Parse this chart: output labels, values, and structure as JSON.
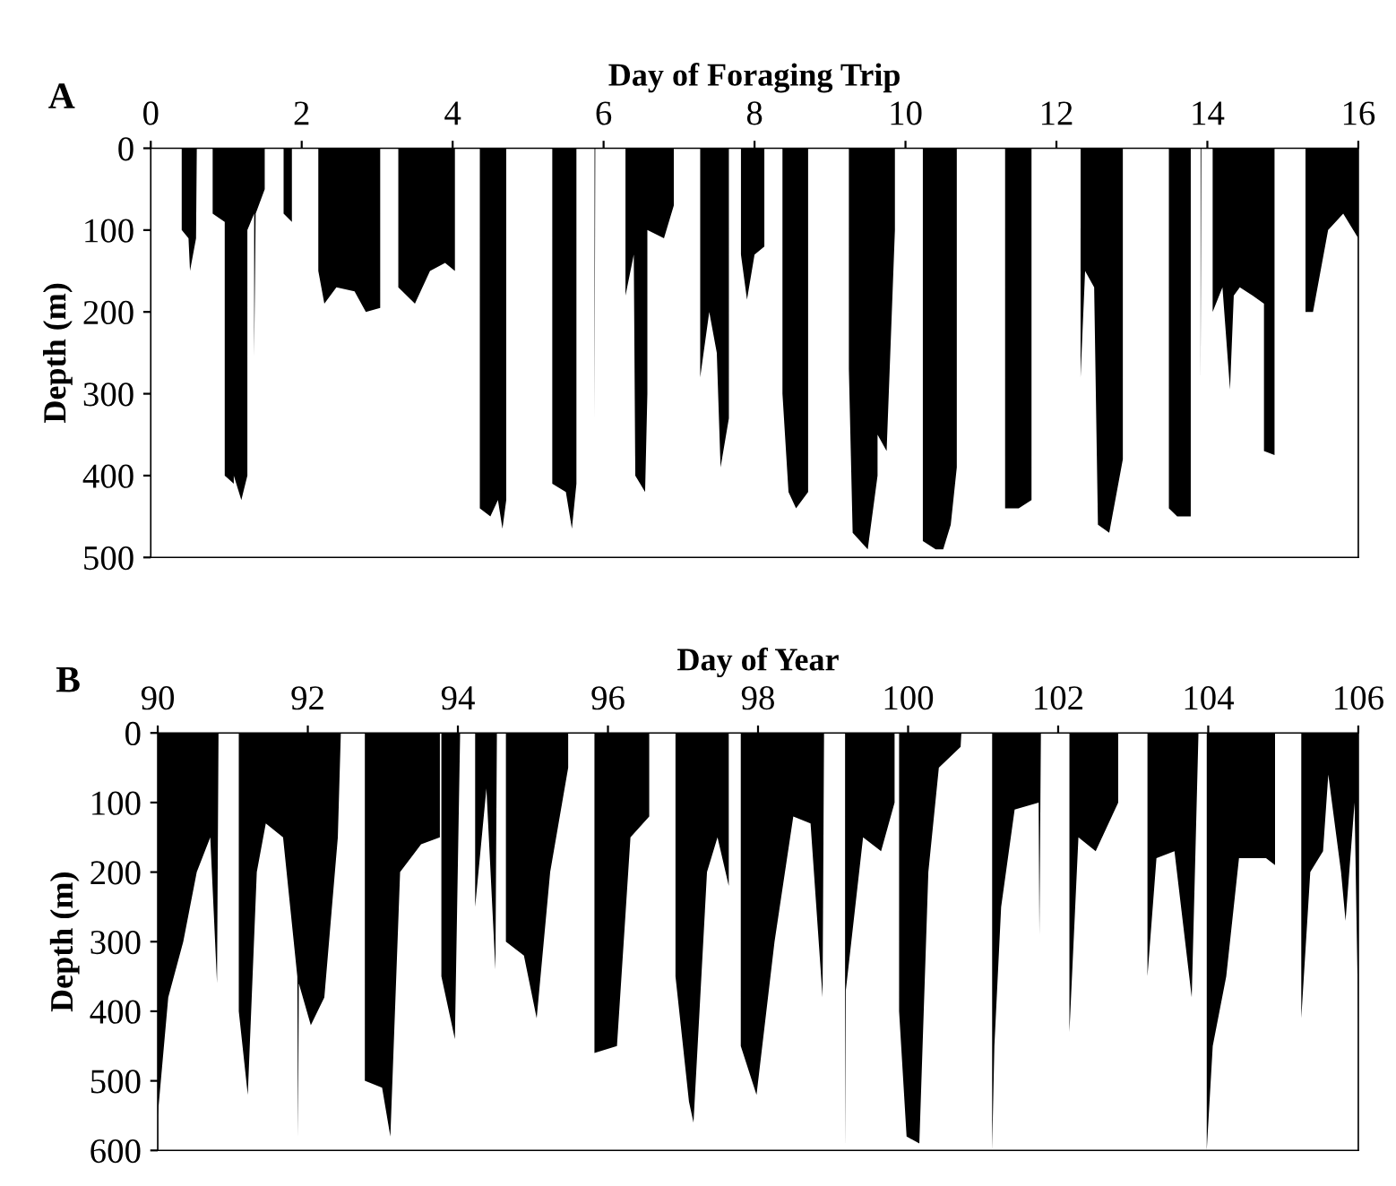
{
  "chart_data": [
    {
      "type": "area",
      "xlabel": "Day of Foraging Trip",
      "ylabel": "Depth (m)",
      "annotations": [
        "A"
      ],
      "xlim": [
        0,
        16
      ],
      "xticks": [
        0,
        2,
        4,
        6,
        8,
        10,
        12,
        14,
        16
      ],
      "ylim": [
        500,
        0
      ],
      "yticks": [
        0,
        100,
        200,
        300,
        400,
        500
      ],
      "series": [
        {
          "color": "#000000",
          "x": [
            0,
            0.41,
            0.41,
            0.5,
            0.52,
            0.6,
            0.61,
            0.82,
            0.82,
            0.98,
            0.98,
            1.1,
            1.1,
            1.2,
            1.28,
            1.28,
            1.37,
            1.37,
            1.39,
            1.51,
            1.51,
            1.76,
            1.76,
            1.87,
            1.87,
            2.22,
            2.22,
            2.3,
            2.46,
            2.7,
            2.85,
            3.04,
            3.04,
            3.28,
            3.28,
            3.5,
            3.7,
            3.9,
            4.03,
            4.03,
            4.36,
            4.36,
            4.5,
            4.6,
            4.66,
            4.71,
            4.71,
            5.32,
            5.32,
            5.5,
            5.58,
            5.64,
            5.64,
            5.88,
            5.88,
            5.89,
            6.29,
            6.29,
            6.4,
            6.42,
            6.55,
            6.58,
            6.58,
            6.8,
            6.93,
            6.93,
            7.28,
            7.28,
            7.4,
            7.5,
            7.55,
            7.66,
            7.66,
            7.82,
            7.82,
            7.9,
            8.0,
            8.13,
            8.13,
            8.37,
            8.37,
            8.45,
            8.55,
            8.71,
            8.71,
            9.25,
            9.25,
            9.3,
            9.5,
            9.63,
            9.63,
            9.75,
            9.86,
            9.86,
            10.23,
            10.23,
            10.4,
            10.5,
            10.6,
            10.68,
            10.68,
            11.32,
            11.32,
            11.5,
            11.67,
            11.67,
            12.32,
            12.32,
            12.38,
            12.5,
            12.55,
            12.7,
            12.88,
            12.88,
            13.49,
            13.49,
            13.6,
            13.78,
            13.78,
            13.91,
            13.91,
            13.92,
            14.07,
            14.07,
            14.2,
            14.3,
            14.35,
            14.43,
            14.6,
            14.75,
            14.75,
            14.89,
            14.89,
            15.3,
            15.3,
            15.4,
            15.6,
            15.8,
            16
          ],
          "values": [
            0,
            0,
            100,
            110,
            150,
            110,
            0,
            0,
            80,
            90,
            400,
            410,
            400,
            430,
            400,
            100,
            80,
            255,
            80,
            50,
            0,
            0,
            80,
            90,
            0,
            0,
            150,
            190,
            170,
            175,
            200,
            195,
            0,
            0,
            170,
            190,
            150,
            140,
            150,
            0,
            0,
            440,
            450,
            430,
            465,
            430,
            0,
            0,
            410,
            420,
            465,
            410,
            0,
            0,
            330,
            0,
            0,
            180,
            130,
            400,
            420,
            300,
            100,
            110,
            70,
            0,
            0,
            280,
            200,
            250,
            390,
            330,
            0,
            0,
            130,
            185,
            130,
            120,
            0,
            0,
            300,
            420,
            440,
            420,
            0,
            0,
            270,
            470,
            490,
            400,
            350,
            370,
            100,
            0,
            0,
            480,
            490,
            490,
            460,
            390,
            0,
            0,
            440,
            440,
            430,
            0,
            0,
            280,
            150,
            170,
            460,
            470,
            380,
            0,
            0,
            440,
            450,
            450,
            0,
            0,
            290,
            0,
            0,
            200,
            170,
            295,
            180,
            170,
            180,
            190,
            370,
            375,
            0,
            0,
            200,
            200,
            100,
            80,
            110
          ]
        }
      ]
    },
    {
      "type": "area",
      "xlabel": "Day of Year",
      "ylabel": "Depth (m)",
      "annotations": [
        "B"
      ],
      "xlim": [
        90,
        106
      ],
      "xticks": [
        90,
        92,
        94,
        96,
        98,
        100,
        102,
        104,
        106
      ],
      "ylim": [
        600,
        0
      ],
      "yticks": [
        0,
        100,
        200,
        300,
        400,
        500,
        600
      ],
      "series": [
        {
          "color": "#000000",
          "x": [
            90,
            90.14,
            90.34,
            90.52,
            90.7,
            90.79,
            90.81,
            91.08,
            91.08,
            91.2,
            91.32,
            91.44,
            91.67,
            91.86,
            91.87,
            91.88,
            92.04,
            92.22,
            92.4,
            92.44,
            92.76,
            92.76,
            92.99,
            93.1,
            93.23,
            93.51,
            93.76,
            93.76,
            93.78,
            93.78,
            93.96,
            94.03,
            94.23,
            94.23,
            94.38,
            94.5,
            94.52,
            94.64,
            94.64,
            94.88,
            95.05,
            95.23,
            95.47,
            95.47,
            95.82,
            95.82,
            96.12,
            96.3,
            96.55,
            96.55,
            96.9,
            96.9,
            97.08,
            97.14,
            97.32,
            97.46,
            97.61,
            97.61,
            97.77,
            97.77,
            97.98,
            98.22,
            98.47,
            98.7,
            98.86,
            98.88,
            99.16,
            99.16,
            99.17,
            99.4,
            99.64,
            99.82,
            99.82,
            99.88,
            99.88,
            99.98,
            100.15,
            100.27,
            100.41,
            100.7,
            100.71,
            101.12,
            101.12,
            101.15,
            101.24,
            101.42,
            101.74,
            101.75,
            101.77,
            102.15,
            102.15,
            102.27,
            102.5,
            102.8,
            102.8,
            103.19,
            103.19,
            103.31,
            103.55,
            103.78,
            103.87,
            103.98,
            103.98,
            104.06,
            104.24,
            104.41,
            104.77,
            104.89,
            104.89,
            105.24,
            105.24,
            105.36,
            105.53,
            105.6,
            105.77,
            105.83,
            105.95,
            106
          ],
          "values": [
            550,
            380,
            300,
            200,
            150,
            360,
            0,
            0,
            400,
            520,
            200,
            130,
            150,
            350,
            580,
            360,
            420,
            380,
            150,
            0,
            0,
            500,
            510,
            580,
            200,
            160,
            150,
            0,
            0,
            350,
            440,
            0,
            0,
            250,
            80,
            340,
            0,
            0,
            300,
            320,
            410,
            200,
            50,
            0,
            0,
            460,
            450,
            150,
            120,
            0,
            0,
            350,
            530,
            560,
            200,
            150,
            220,
            0,
            0,
            450,
            520,
            300,
            120,
            130,
            380,
            0,
            0,
            600,
            370,
            150,
            170,
            100,
            0,
            0,
            400,
            580,
            590,
            200,
            50,
            20,
            0,
            0,
            600,
            450,
            250,
            110,
            100,
            290,
            0,
            0,
            430,
            150,
            170,
            100,
            0,
            0,
            350,
            180,
            170,
            380,
            0,
            0,
            600,
            450,
            350,
            180,
            180,
            190,
            0,
            0,
            410,
            200,
            170,
            60,
            200,
            270,
            100,
            420
          ]
        }
      ]
    }
  ]
}
